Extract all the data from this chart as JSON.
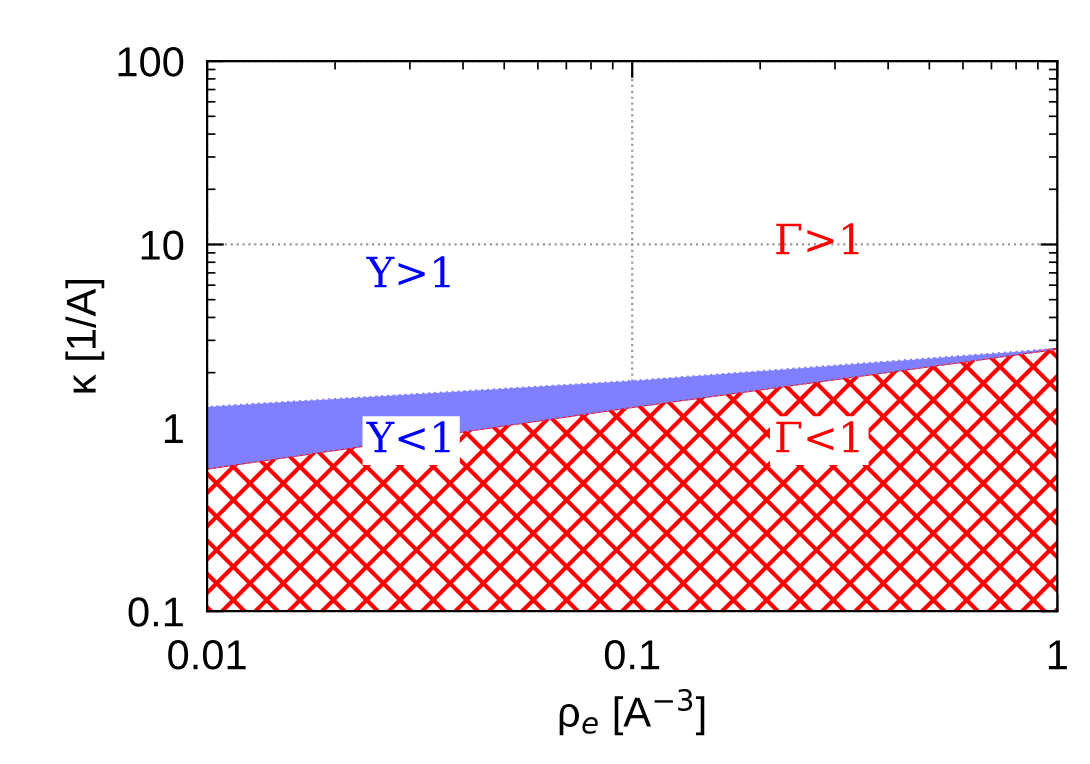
{
  "chart_data": {
    "type": "area",
    "xlabel": "ρ$_{e}$ [A$^{−3}$]",
    "ylabel": "κ [1/A]",
    "log": "xy",
    "grid": true,
    "x": [
      0.01,
      0.1,
      1
    ],
    "series": [
      {
        "color": "#ff0000",
        "values": [
          0.6,
          1.3,
          2.7
        ]
      },
      {
        "color": "#7f7fff",
        "values": [
          1.3,
          1.8,
          2.7
        ]
      }
    ],
    "xlim": [
      0.01,
      1
    ],
    "xticks": [
      0.01,
      0.1,
      1
    ],
    "ylim": [
      0.1,
      100
    ],
    "yticks": [
      0.1,
      1,
      10,
      100
    ],
    "annotations": [
      "Υ>1",
      "Υ<1",
      "Γ>1",
      "Γ<1"
    ]
  }
}
